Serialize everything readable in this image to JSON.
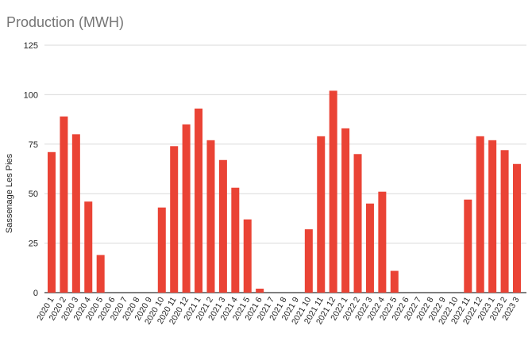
{
  "chart_data": {
    "type": "bar",
    "title": "Production (MWH)",
    "xlabel": "",
    "ylabel": "Sassenage Les Pies",
    "ylim": [
      0,
      125
    ],
    "yticks": [
      0,
      25,
      50,
      75,
      100,
      125
    ],
    "grid": true,
    "legend": "none",
    "bar_color": "#ea4335",
    "grid_color": "#d9d9d9",
    "categories": [
      "2020 1",
      "2020 2",
      "2020 3",
      "2020 4",
      "2020 5",
      "2020 6",
      "2020 7",
      "2020 8",
      "2020 9",
      "2020 10",
      "2020 11",
      "2020 12",
      "2021 1",
      "2021 2",
      "2021 3",
      "2021 4",
      "2021 5",
      "2021 6",
      "2021 7",
      "2021 8",
      "2021 9",
      "2021 10",
      "2021 11",
      "2021 12",
      "2022 1",
      "2022 2",
      "2022 3",
      "2022 4",
      "2022 5",
      "2022 6",
      "2022 7",
      "2022 8",
      "2022 9",
      "2022 10",
      "2022 11",
      "2022 12",
      "2023 1",
      "2023 2",
      "2023 3"
    ],
    "values": [
      71,
      89,
      80,
      46,
      19,
      0,
      0,
      0,
      0,
      43,
      74,
      85,
      93,
      77,
      67,
      53,
      37,
      2,
      0,
      0,
      0,
      32,
      79,
      102,
      83,
      70,
      45,
      51,
      11,
      0,
      0,
      0,
      0,
      0,
      47,
      79,
      77,
      72,
      65
    ]
  }
}
